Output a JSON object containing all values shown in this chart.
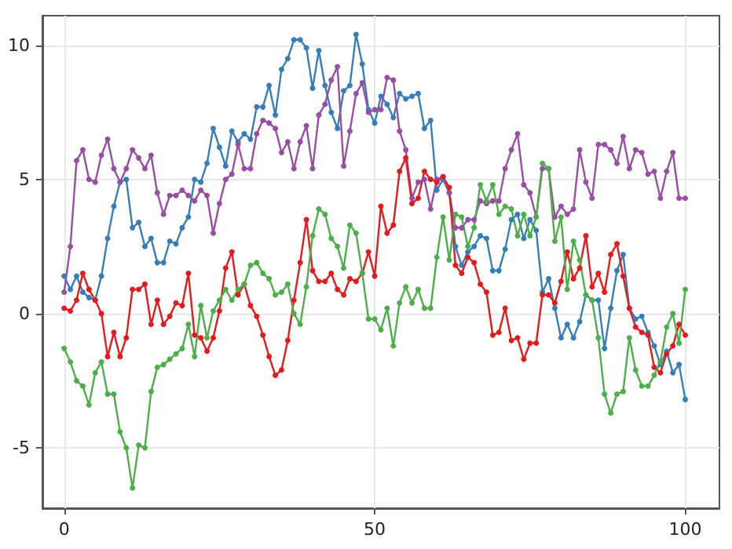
{
  "chart_data": {
    "type": "line",
    "x": [
      0,
      1,
      2,
      3,
      4,
      5,
      6,
      7,
      8,
      9,
      10,
      11,
      12,
      13,
      14,
      15,
      16,
      17,
      18,
      19,
      20,
      21,
      22,
      23,
      24,
      25,
      26,
      27,
      28,
      29,
      30,
      31,
      32,
      33,
      34,
      35,
      36,
      37,
      38,
      39,
      40,
      41,
      42,
      43,
      44,
      45,
      46,
      47,
      48,
      49,
      50,
      51,
      52,
      53,
      54,
      55,
      56,
      57,
      58,
      59,
      60,
      61,
      62,
      63,
      64,
      65,
      66,
      67,
      68,
      69,
      70,
      71,
      72,
      73,
      74,
      75,
      76,
      77,
      78,
      79,
      80,
      81,
      82,
      83,
      84,
      85,
      86,
      87,
      88,
      89,
      90,
      91,
      92,
      93,
      94,
      95,
      96,
      97,
      98,
      99,
      100
    ],
    "series": [
      {
        "color": "#377eb8",
        "values": [
          1.4,
          0.9,
          1.4,
          0.8,
          0.6,
          0.5,
          1.4,
          2.8,
          4.0,
          4.9,
          5.0,
          3.2,
          3.4,
          2.5,
          2.8,
          1.9,
          1.9,
          2.7,
          2.6,
          3.2,
          3.6,
          5.0,
          4.9,
          5.6,
          6.9,
          6.2,
          5.5,
          6.8,
          6.4,
          6.7,
          6.5,
          7.7,
          7.7,
          8.5,
          7.4,
          9.1,
          9.5,
          10.2,
          10.2,
          9.9,
          8.4,
          9.8,
          8.5,
          7.5,
          6.9,
          8.3,
          8.5,
          10.4,
          9.3,
          7.6,
          7.1,
          8.1,
          7.8,
          7.3,
          8.2,
          8.0,
          8.1,
          8.2,
          6.9,
          7.2,
          4.6,
          5.0,
          4.5,
          2.5,
          1.8,
          2.3,
          2.5,
          2.9,
          2.8,
          1.6,
          1.6,
          2.4,
          3.5,
          3.7,
          2.8,
          3.5,
          3.1,
          0.8,
          1.3,
          0.2,
          -0.9,
          -0.4,
          -0.9,
          -0.3,
          0.7,
          0.5,
          0.5,
          -1.3,
          0.2,
          1.6,
          2.2,
          0.2,
          -0.2,
          -0.1,
          -0.7,
          -1.2,
          -1.9,
          -1.4,
          -2.2,
          -1.9,
          -3.2
        ]
      },
      {
        "color": "#984ea3",
        "values": [
          0.8,
          2.5,
          5.7,
          6.1,
          5.0,
          4.9,
          5.9,
          6.5,
          5.4,
          4.9,
          5.4,
          6.1,
          5.8,
          5.4,
          5.9,
          4.5,
          3.7,
          4.4,
          4.4,
          4.6,
          4.4,
          4.2,
          4.6,
          4.4,
          3.0,
          4.1,
          5.0,
          5.2,
          6.3,
          5.4,
          5.4,
          6.7,
          7.2,
          7.1,
          6.9,
          6.0,
          6.4,
          5.4,
          6.4,
          7.0,
          5.4,
          7.4,
          7.8,
          8.7,
          9.2,
          5.5,
          6.8,
          8.2,
          8.6,
          7.5,
          7.6,
          7.6,
          8.8,
          8.7,
          6.8,
          6.1,
          4.3,
          4.9,
          5.0,
          3.9,
          5.0,
          5.1,
          4.5,
          3.2,
          3.2,
          3.5,
          3.5,
          4.2,
          4.1,
          4.2,
          4.2,
          5.4,
          6.1,
          6.7,
          4.8,
          4.5,
          3.6,
          5.4,
          5.4,
          3.6,
          4.0,
          3.7,
          3.9,
          6.1,
          4.9,
          4.3,
          6.3,
          6.3,
          6.1,
          5.6,
          6.6,
          5.4,
          6.1,
          6.0,
          5.2,
          5.3,
          4.3,
          5.3,
          6.0,
          4.3,
          4.3
        ]
      },
      {
        "color": "#e41a1c",
        "values": [
          0.2,
          0.1,
          0.5,
          1.5,
          0.9,
          0.5,
          0.0,
          -1.6,
          -0.7,
          -1.6,
          -0.9,
          0.9,
          0.9,
          1.1,
          -0.4,
          0.5,
          -0.4,
          -0.1,
          0.4,
          0.3,
          1.5,
          -0.8,
          -0.9,
          -1.4,
          -0.9,
          0.1,
          1.7,
          2.3,
          0.7,
          1.1,
          0.3,
          -0.1,
          -0.8,
          -1.6,
          -2.3,
          -2.1,
          -1.0,
          0.5,
          1.9,
          3.5,
          1.6,
          1.2,
          1.2,
          1.5,
          0.9,
          0.7,
          1.3,
          1.2,
          1.5,
          2.3,
          1.4,
          4.0,
          3.0,
          3.3,
          5.3,
          5.8,
          4.1,
          4.3,
          5.3,
          5.0,
          4.9,
          5.1,
          4.7,
          1.8,
          1.5,
          2.1,
          1.9,
          1.1,
          0.8,
          -0.8,
          -0.7,
          0.2,
          -1.0,
          -0.9,
          -1.7,
          -1.1,
          -1.1,
          0.7,
          0.7,
          0.4,
          1.2,
          2.3,
          1.3,
          1.7,
          2.9,
          1.0,
          1.5,
          0.8,
          2.2,
          2.6,
          1.4,
          0.2,
          -0.5,
          -0.7,
          -0.8,
          -2.0,
          -2.2,
          -1.5,
          -1.2,
          -0.4,
          -0.8
        ]
      },
      {
        "color": "#4daf4a",
        "values": [
          -1.3,
          -1.8,
          -2.5,
          -2.7,
          -3.4,
          -2.2,
          -1.8,
          -3.0,
          -3.0,
          -4.4,
          -5.0,
          -6.5,
          -4.9,
          -5.0,
          -2.9,
          -2.0,
          -1.9,
          -1.7,
          -1.5,
          -1.3,
          -0.4,
          -1.6,
          0.3,
          -0.9,
          0.1,
          0.5,
          0.9,
          0.5,
          0.9,
          1.1,
          1.8,
          1.9,
          1.5,
          1.3,
          0.7,
          0.8,
          1.1,
          0.0,
          -0.4,
          1.0,
          2.9,
          3.9,
          3.7,
          2.8,
          2.5,
          1.7,
          3.3,
          3.0,
          1.5,
          -0.2,
          -0.2,
          -0.6,
          0.2,
          -1.2,
          0.4,
          1.0,
          0.4,
          0.9,
          0.2,
          0.2,
          2.1,
          3.6,
          2.0,
          3.7,
          3.6,
          2.5,
          3.2,
          4.8,
          4.2,
          4.8,
          3.7,
          4.0,
          3.9,
          2.9,
          3.7,
          2.9,
          3.6,
          5.6,
          5.4,
          2.7,
          3.6,
          0.9,
          2.7,
          2.0,
          0.7,
          0.5,
          -0.9,
          -3.0,
          -3.7,
          -3.0,
          -2.9,
          -0.9,
          -2.1,
          -2.7,
          -2.7,
          -2.3,
          -1.8,
          -0.5,
          0.0,
          -1.1,
          0.9
        ]
      }
    ],
    "xlim": [
      -3.5,
      105.5
    ],
    "ylim": [
      -7.25,
      11.1
    ],
    "xticks": [
      0,
      50,
      100
    ],
    "yticks": [
      -5,
      0,
      5,
      10
    ],
    "grid": true,
    "marker": "circle",
    "line_style": "solid"
  }
}
